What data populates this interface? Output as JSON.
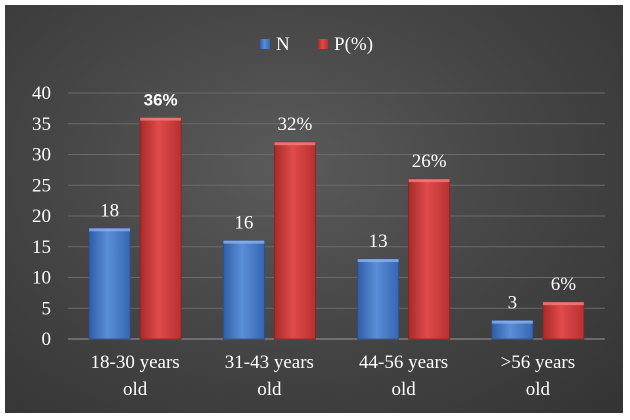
{
  "chart_data": {
    "type": "bar",
    "categories": [
      [
        "18-30 years",
        "old"
      ],
      [
        "31-43 years",
        "old"
      ],
      [
        "44-56 years",
        "old"
      ],
      [
        ">56 years",
        "old"
      ]
    ],
    "series": [
      {
        "name": "N",
        "values": [
          18,
          16,
          13,
          3
        ],
        "labels": [
          "18",
          "16",
          "13",
          "3"
        ],
        "color": "#4a7cc9"
      },
      {
        "name": "P(%)",
        "values": [
          36,
          32,
          26,
          6
        ],
        "labels": [
          "36%",
          "32%",
          "26%",
          "6%"
        ],
        "color": "#cf3c3c"
      }
    ],
    "ylim": [
      0,
      40
    ],
    "yticks": [
      "0",
      "5",
      "10",
      "15",
      "20",
      "25",
      "30",
      "35",
      "40"
    ],
    "grid": true,
    "legend_position": "top-center"
  }
}
